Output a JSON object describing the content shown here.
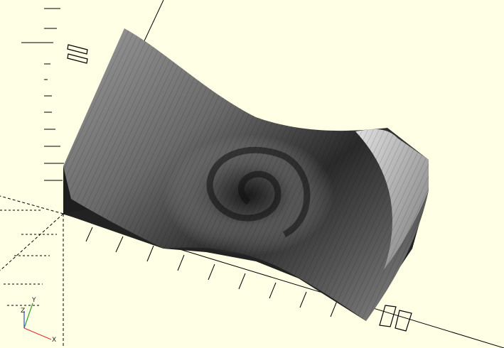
{
  "app": {
    "view": "3d-viewport",
    "background_color": "#ffffe5",
    "axis_colors": {
      "x": "#e03030",
      "y": "#30a030",
      "z": "#3050d0"
    }
  },
  "model": {
    "description_icon": "spiral-heightmap-surface",
    "shading": [
      "#d8d8d8",
      "#b0b0b0",
      "#7a7a7a",
      "#3a3a3a",
      "#1a1a1a"
    ]
  },
  "axis_indicator": {
    "x_label": "X",
    "y_label": "Y",
    "z_label": "Z"
  },
  "ruler_numerals": {
    "top_left": "10",
    "bottom_right": "10"
  }
}
